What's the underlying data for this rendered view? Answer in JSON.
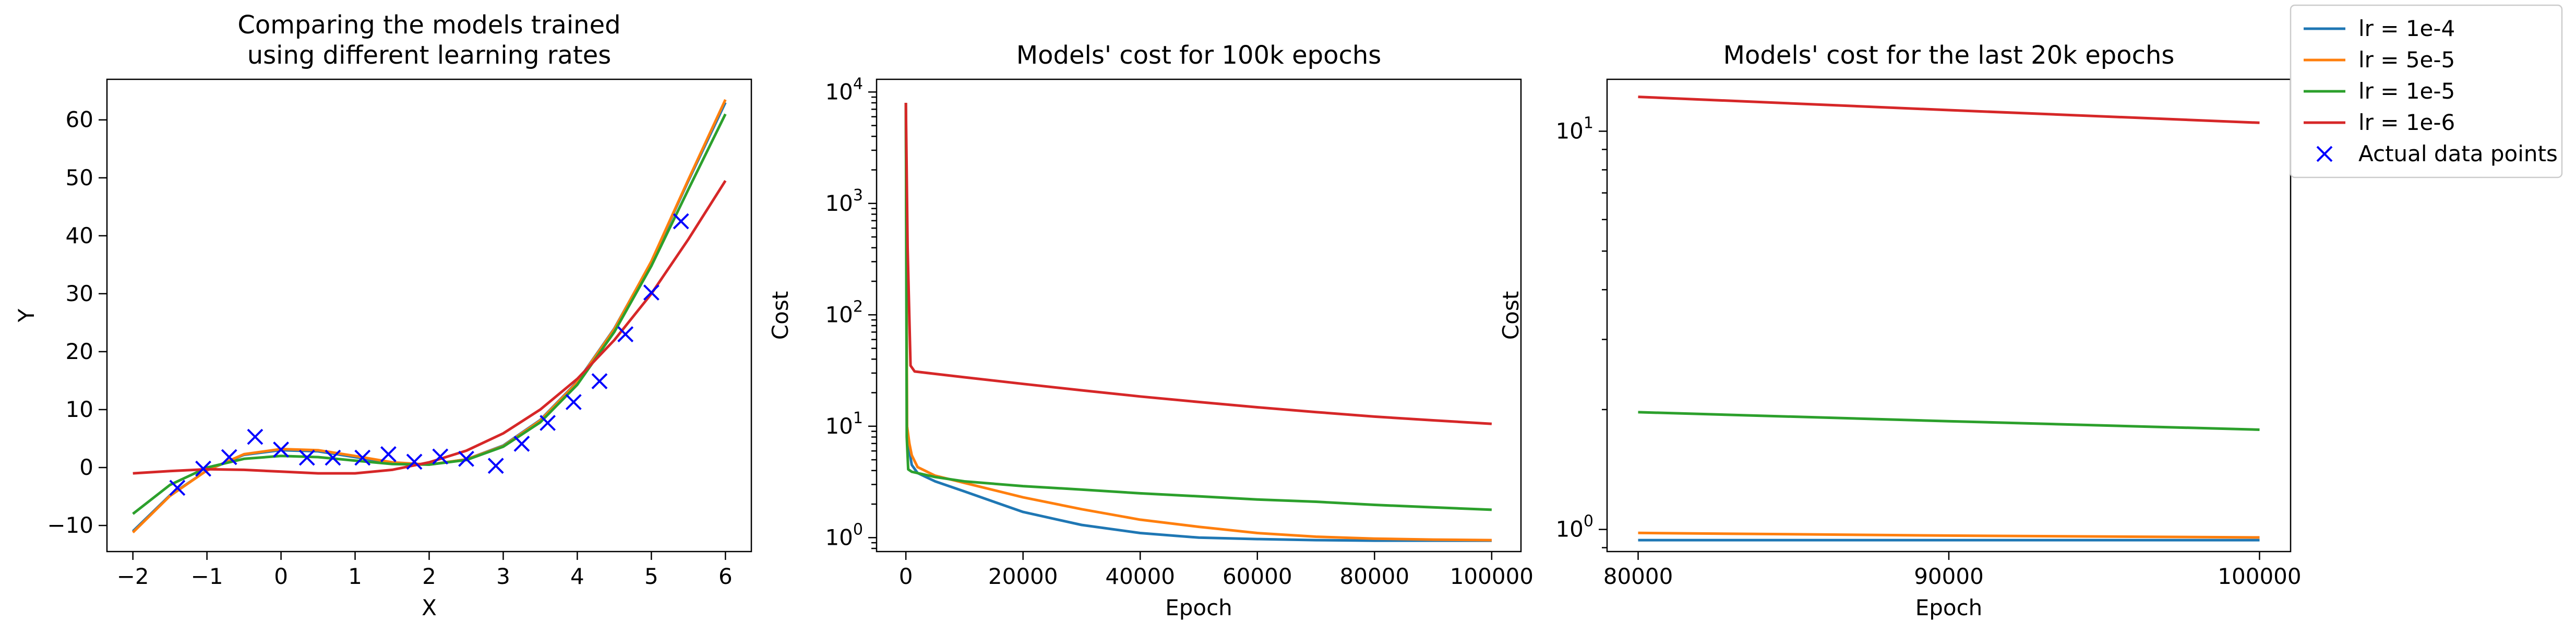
{
  "chart_data": [
    {
      "type": "line",
      "title": "Comparing the models trained\nusing different learning rates",
      "xlabel": "X",
      "ylabel": "Y",
      "xlim": [
        -2.35,
        6.35
      ],
      "ylim": [
        -14.5,
        67.0
      ],
      "xticks": [
        -2,
        -1,
        0,
        1,
        2,
        3,
        4,
        5,
        6
      ],
      "yticks": [
        -10,
        0,
        10,
        20,
        30,
        40,
        50,
        60
      ],
      "series": [
        {
          "name": "lr = 1e-4",
          "color": "#1f77b4",
          "x": [
            -2,
            -1.5,
            -1,
            -0.5,
            0,
            0.5,
            1,
            1.5,
            2,
            2.5,
            3,
            3.5,
            4,
            4.5,
            5,
            5.5,
            6
          ],
          "y": [
            -11.0,
            -4.8,
            -0.5,
            2.2,
            3.0,
            2.8,
            1.8,
            0.8,
            0.5,
            1.4,
            3.8,
            8.2,
            14.8,
            24.0,
            35.5,
            49.5,
            63.0
          ]
        },
        {
          "name": "lr = 5e-5",
          "color": "#ff7f0e",
          "x": [
            -2,
            -1.5,
            -1,
            -0.5,
            0,
            0.5,
            1,
            1.5,
            2,
            2.5,
            3,
            3.5,
            4,
            4.5,
            5,
            5.5,
            6
          ],
          "y": [
            -11.2,
            -4.9,
            -0.5,
            2.3,
            3.2,
            3.0,
            2.0,
            0.9,
            0.5,
            1.4,
            3.7,
            8.1,
            14.7,
            23.9,
            35.6,
            49.7,
            63.5
          ]
        },
        {
          "name": "lr = 1e-5",
          "color": "#2ca02c",
          "x": [
            -2,
            -1.5,
            -1,
            -0.5,
            0,
            0.5,
            1,
            1.5,
            2,
            2.5,
            3,
            3.5,
            4,
            4.5,
            5,
            5.5,
            6
          ],
          "y": [
            -8.0,
            -3.0,
            0.0,
            1.5,
            2.0,
            1.8,
            1.2,
            0.6,
            0.5,
            1.3,
            3.6,
            7.8,
            14.3,
            23.4,
            34.8,
            48.0,
            61.0
          ]
        },
        {
          "name": "lr = 1e-6",
          "color": "#d62728",
          "x": [
            -2,
            -1.5,
            -1,
            -0.5,
            0,
            0.5,
            1,
            1.5,
            2,
            2.5,
            3,
            3.5,
            4,
            4.5,
            5,
            5.5,
            6
          ],
          "y": [
            -1.0,
            -0.6,
            -0.3,
            -0.4,
            -0.7,
            -1.0,
            -1.0,
            -0.4,
            0.9,
            2.9,
            5.9,
            10.0,
            15.3,
            22.0,
            30.0,
            39.4,
            49.5
          ]
        }
      ],
      "points": {
        "name": "Actual data points",
        "color": "#0000ff",
        "x": [
          -1.4,
          -1.05,
          -0.7,
          -0.35,
          0.0,
          0.35,
          0.7,
          1.1,
          1.45,
          1.8,
          2.15,
          2.5,
          2.9,
          3.25,
          3.6,
          3.95,
          4.3,
          4.65,
          5.0,
          5.4
        ],
        "y": [
          -3.5,
          -0.2,
          1.8,
          5.3,
          3.1,
          1.7,
          1.7,
          1.7,
          2.3,
          1.0,
          1.9,
          1.5,
          0.3,
          4.1,
          7.7,
          11.3,
          14.9,
          23.0,
          30.2,
          42.5
        ]
      }
    },
    {
      "type": "line",
      "title": "Models' cost for 100k epochs",
      "xlabel": "Epoch",
      "ylabel": "Cost",
      "yscale": "log",
      "xlim": [
        -5000,
        105000
      ],
      "ylim": [
        0.75,
        13000
      ],
      "xticks": [
        0,
        20000,
        40000,
        60000,
        80000,
        100000
      ],
      "yticks": [
        1,
        10,
        100,
        1000,
        10000
      ],
      "ytick_labels": [
        "10^0",
        "10^1",
        "10^2",
        "10^3",
        "10^4"
      ],
      "series": [
        {
          "name": "lr = 1e-4",
          "color": "#1f77b4",
          "x": [
            0,
            200,
            600,
            1000,
            2000,
            5000,
            10000,
            15000,
            20000,
            30000,
            40000,
            50000,
            60000,
            70000,
            80000,
            90000,
            100000
          ],
          "y": [
            8000,
            10,
            6,
            4.5,
            3.8,
            3.2,
            2.6,
            2.1,
            1.7,
            1.3,
            1.1,
            1.0,
            0.97,
            0.95,
            0.94,
            0.94,
            0.94
          ]
        },
        {
          "name": "lr = 5e-5",
          "color": "#ff7f0e",
          "x": [
            0,
            200,
            600,
            1000,
            2000,
            5000,
            10000,
            20000,
            30000,
            40000,
            50000,
            60000,
            70000,
            80000,
            90000,
            100000
          ],
          "y": [
            8000,
            10,
            7,
            5.5,
            4.3,
            3.6,
            3.1,
            2.3,
            1.8,
            1.45,
            1.25,
            1.1,
            1.02,
            0.98,
            0.96,
            0.95
          ]
        },
        {
          "name": "lr = 1e-5",
          "color": "#2ca02c",
          "x": [
            0,
            150,
            400,
            1000,
            5000,
            10000,
            20000,
            30000,
            40000,
            50000,
            60000,
            70000,
            80000,
            90000,
            100000
          ],
          "y": [
            8000,
            8,
            4.1,
            3.9,
            3.5,
            3.2,
            2.9,
            2.7,
            2.5,
            2.35,
            2.2,
            2.1,
            1.97,
            1.87,
            1.78
          ]
        },
        {
          "name": "lr = 1e-6",
          "color": "#d62728",
          "x": [
            0,
            300,
            800,
            1500,
            5000,
            10000,
            20000,
            30000,
            40000,
            50000,
            60000,
            70000,
            80000,
            90000,
            100000
          ],
          "y": [
            8000,
            400,
            35,
            31,
            29.5,
            27.5,
            24,
            21,
            18.5,
            16.5,
            14.8,
            13.4,
            12.2,
            11.3,
            10.5
          ]
        }
      ]
    },
    {
      "type": "line",
      "title": "Models' cost for the last 20k epochs",
      "xlabel": "Epoch",
      "ylabel": "Cost",
      "yscale": "log",
      "xlim": [
        79000,
        101000
      ],
      "ylim": [
        0.88,
        13.5
      ],
      "xticks": [
        80000,
        90000,
        100000
      ],
      "yticks": [
        1,
        10
      ],
      "ytick_labels": [
        "10^0",
        "10^1"
      ],
      "series": [
        {
          "name": "lr = 1e-4",
          "color": "#1f77b4",
          "x": [
            80000,
            90000,
            100000
          ],
          "y": [
            0.94,
            0.94,
            0.94
          ]
        },
        {
          "name": "lr = 5e-5",
          "color": "#ff7f0e",
          "x": [
            80000,
            90000,
            100000
          ],
          "y": [
            0.98,
            0.965,
            0.955
          ]
        },
        {
          "name": "lr = 1e-5",
          "color": "#2ca02c",
          "x": [
            80000,
            90000,
            100000
          ],
          "y": [
            1.97,
            1.87,
            1.78
          ]
        },
        {
          "name": "lr = 1e-6",
          "color": "#d62728",
          "x": [
            80000,
            90000,
            100000
          ],
          "y": [
            12.2,
            11.3,
            10.5
          ]
        }
      ]
    }
  ],
  "legend": {
    "placement": "top-right",
    "entries": [
      {
        "label": "lr = 1e-4",
        "color": "#1f77b4",
        "marker": "line"
      },
      {
        "label": "lr = 5e-5",
        "color": "#ff7f0e",
        "marker": "line"
      },
      {
        "label": "lr = 1e-5",
        "color": "#2ca02c",
        "marker": "line"
      },
      {
        "label": "lr = 1e-6",
        "color": "#d62728",
        "marker": "line"
      },
      {
        "label": "Actual data points",
        "color": "#0000ff",
        "marker": "x"
      }
    ]
  }
}
